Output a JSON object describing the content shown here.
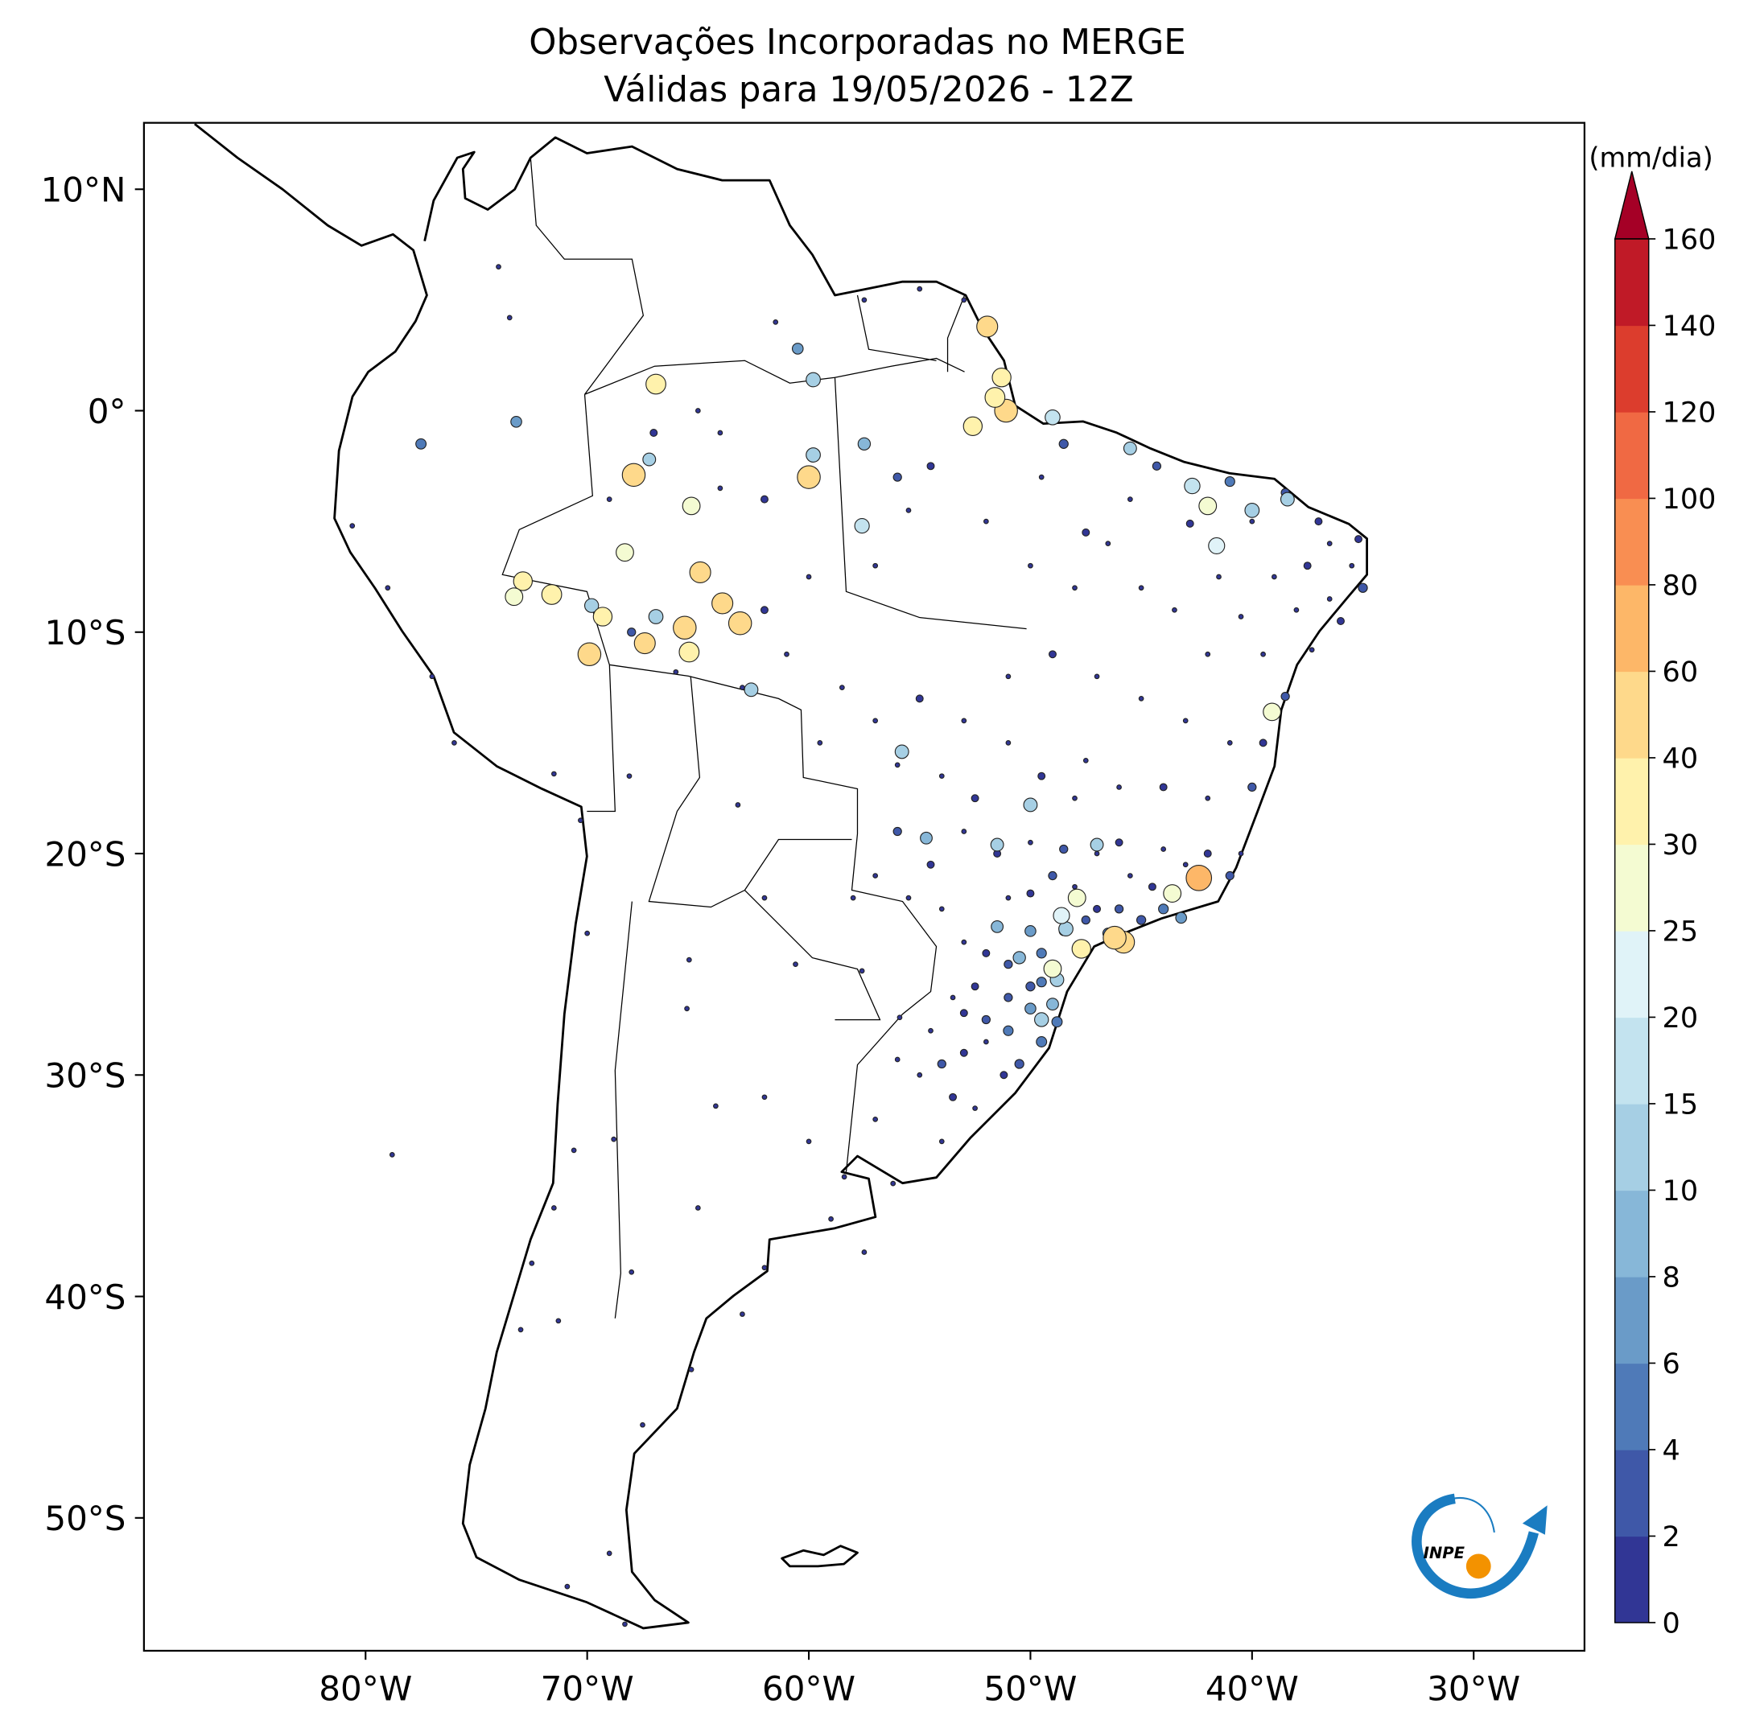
{
  "chart_data": {
    "type": "station_map",
    "title": "Observações Incorporadas no MERGE",
    "subtitle": "Válidas para 19/05/2026 - 12Z",
    "xlim": [
      -90,
      -25
    ],
    "ylim": [
      -56,
      13
    ],
    "xticks": [
      {
        "value": -80,
        "label": "80°W"
      },
      {
        "value": -70,
        "label": "70°W"
      },
      {
        "value": -60,
        "label": "60°W"
      },
      {
        "value": -50,
        "label": "50°W"
      },
      {
        "value": -40,
        "label": "40°W"
      },
      {
        "value": -30,
        "label": "30°W"
      }
    ],
    "yticks": [
      {
        "value": 10,
        "label": "10°N"
      },
      {
        "value": 0,
        "label": "0°"
      },
      {
        "value": -10,
        "label": "10°S"
      },
      {
        "value": -20,
        "label": "20°S"
      },
      {
        "value": -30,
        "label": "30°S"
      },
      {
        "value": -40,
        "label": "40°S"
      },
      {
        "value": -50,
        "label": "50°S"
      }
    ],
    "colorbar": {
      "label": "(mm/dia)",
      "levels": [
        0,
        2,
        4,
        6,
        8,
        10,
        15,
        20,
        25,
        30,
        40,
        60,
        80,
        100,
        120,
        140,
        160
      ],
      "colors": [
        "#313695",
        "#3f58a8",
        "#4f7ab8",
        "#6a9bc8",
        "#87b7d8",
        "#a6cfe4",
        "#c3e3ef",
        "#e0f3f8",
        "#f4fbd2",
        "#fff2ac",
        "#fed98b",
        "#fdb768",
        "#f98e52",
        "#f06943",
        "#dc3d2d",
        "#c01a27"
      ],
      "extend_color": "#a50026"
    },
    "logo": "INPE",
    "stations": [
      {
        "lon": -53,
        "lat": -29,
        "value": 1
      },
      {
        "lon": -52,
        "lat": -28.5,
        "value": 0
      },
      {
        "lon": -54,
        "lat": -29.5,
        "value": 2
      },
      {
        "lon": -55,
        "lat": -30,
        "value": 0
      },
      {
        "lon": -51.2,
        "lat": -30,
        "value": 1
      },
      {
        "lon": -52.5,
        "lat": -31.5,
        "value": 0
      },
      {
        "lon": -53.5,
        "lat": -31,
        "value": 1
      },
      {
        "lon": -56,
        "lat": -29.3,
        "value": 0
      },
      {
        "lon": -50.5,
        "lat": -29.5,
        "value": 3
      },
      {
        "lon": -54.5,
        "lat": -28,
        "value": 0
      },
      {
        "lon": -52,
        "lat": -27.5,
        "value": 2
      },
      {
        "lon": -53,
        "lat": -27.2,
        "value": 1
      },
      {
        "lon": -51,
        "lat": -28,
        "value": 4
      },
      {
        "lon": -49.5,
        "lat": -28.5,
        "value": 5
      },
      {
        "lon": -50,
        "lat": -27,
        "value": 6
      },
      {
        "lon": -49,
        "lat": -26.8,
        "value": 8
      },
      {
        "lon": -48.8,
        "lat": -27.6,
        "value": 5
      },
      {
        "lon": -51,
        "lat": -26.5,
        "value": 2
      },
      {
        "lon": -52.5,
        "lat": -26,
        "value": 1
      },
      {
        "lon": -53.5,
        "lat": -26.5,
        "value": 0
      },
      {
        "lon": -50,
        "lat": -26,
        "value": 3
      },
      {
        "lon": -49.5,
        "lat": -25.8,
        "value": 4
      },
      {
        "lon": -51,
        "lat": -25,
        "value": 2
      },
      {
        "lon": -52,
        "lat": -24.5,
        "value": 1
      },
      {
        "lon": -53,
        "lat": -24,
        "value": 0
      },
      {
        "lon": -51.5,
        "lat": -23.3,
        "value": 8
      },
      {
        "lon": -50,
        "lat": -23.5,
        "value": 6
      },
      {
        "lon": -49.5,
        "lat": -24.5,
        "value": 4
      },
      {
        "lon": -48.5,
        "lat": -23.5,
        "value": 3
      },
      {
        "lon": -47.5,
        "lat": -23,
        "value": 2
      },
      {
        "lon": -46.5,
        "lat": -23.6,
        "value": 5
      },
      {
        "lon": -47,
        "lat": -22.5,
        "value": 1
      },
      {
        "lon": -48,
        "lat": -21.5,
        "value": 0
      },
      {
        "lon": -49,
        "lat": -21,
        "value": 2
      },
      {
        "lon": -50,
        "lat": -21.8,
        "value": 1
      },
      {
        "lon": -51,
        "lat": -22,
        "value": 0
      },
      {
        "lon": -46,
        "lat": -22.5,
        "value": 2
      },
      {
        "lon": -45,
        "lat": -23,
        "value": 3
      },
      {
        "lon": -44,
        "lat": -22.5,
        "value": 4
      },
      {
        "lon": -43.2,
        "lat": -22.9,
        "value": 6
      },
      {
        "lon": -44.5,
        "lat": -21.5,
        "value": 1
      },
      {
        "lon": -45.5,
        "lat": -21,
        "value": 0
      },
      {
        "lon": -43,
        "lat": -20.5,
        "value": 0
      },
      {
        "lon": -42,
        "lat": -20,
        "value": 1
      },
      {
        "lon": -41,
        "lat": -21,
        "value": 2
      },
      {
        "lon": -40.5,
        "lat": -20,
        "value": 0
      },
      {
        "lon": -44,
        "lat": -19.8,
        "value": 0
      },
      {
        "lon": -46,
        "lat": -19.5,
        "value": 1
      },
      {
        "lon": -47,
        "lat": -20,
        "value": 0
      },
      {
        "lon": -48.5,
        "lat": -19.8,
        "value": 2
      },
      {
        "lon": -50,
        "lat": -19.5,
        "value": 0
      },
      {
        "lon": -51.5,
        "lat": -20,
        "value": 1
      },
      {
        "lon": -53,
        "lat": -19,
        "value": 0
      },
      {
        "lon": -54.5,
        "lat": -20.5,
        "value": 1
      },
      {
        "lon": -55.5,
        "lat": -22,
        "value": 0
      },
      {
        "lon": -56,
        "lat": -19,
        "value": 2
      },
      {
        "lon": -57,
        "lat": -21,
        "value": 0
      },
      {
        "lon": -54,
        "lat": -22.5,
        "value": 0
      },
      {
        "lon": -48,
        "lat": -17.5,
        "value": 0
      },
      {
        "lon": -49.5,
        "lat": -16.5,
        "value": 1
      },
      {
        "lon": -47.5,
        "lat": -15.8,
        "value": 0
      },
      {
        "lon": -46,
        "lat": -17,
        "value": 0
      },
      {
        "lon": -44,
        "lat": -17,
        "value": 1
      },
      {
        "lon": -42,
        "lat": -17.5,
        "value": 0
      },
      {
        "lon": -40,
        "lat": -17,
        "value": 2
      },
      {
        "lon": -39.5,
        "lat": -15,
        "value": 1
      },
      {
        "lon": -41,
        "lat": -15,
        "value": 0
      },
      {
        "lon": -43,
        "lat": -14,
        "value": 0
      },
      {
        "lon": -45,
        "lat": -13,
        "value": 0
      },
      {
        "lon": -47,
        "lat": -12,
        "value": 0
      },
      {
        "lon": -49,
        "lat": -11,
        "value": 1
      },
      {
        "lon": -51,
        "lat": -12,
        "value": 0
      },
      {
        "lon": -53,
        "lat": -14,
        "value": 0
      },
      {
        "lon": -55,
        "lat": -13,
        "value": 1
      },
      {
        "lon": -57,
        "lat": -14,
        "value": 0
      },
      {
        "lon": -58.5,
        "lat": -12.5,
        "value": 0
      },
      {
        "lon": -59.5,
        "lat": -15,
        "value": 0
      },
      {
        "lon": -56,
        "lat": -16,
        "value": 0
      },
      {
        "lon": -54,
        "lat": -16.5,
        "value": 0
      },
      {
        "lon": -52.5,
        "lat": -17.5,
        "value": 1
      },
      {
        "lon": -51,
        "lat": -15,
        "value": 0
      },
      {
        "lon": -38.5,
        "lat": -3.7,
        "value": 2
      },
      {
        "lon": -37,
        "lat": -5,
        "value": 1
      },
      {
        "lon": -35.5,
        "lat": -7,
        "value": 0
      },
      {
        "lon": -35,
        "lat": -8,
        "value": 3
      },
      {
        "lon": -36,
        "lat": -9.5,
        "value": 1
      },
      {
        "lon": -37.3,
        "lat": -10.8,
        "value": 0
      },
      {
        "lon": -38.5,
        "lat": -12.9,
        "value": 2
      },
      {
        "lon": -39.5,
        "lat": -11,
        "value": 0
      },
      {
        "lon": -40.5,
        "lat": -9.3,
        "value": 0
      },
      {
        "lon": -41.5,
        "lat": -7.5,
        "value": 0
      },
      {
        "lon": -42.8,
        "lat": -5.1,
        "value": 1
      },
      {
        "lon": -44.3,
        "lat": -2.5,
        "value": 2
      },
      {
        "lon": -45.5,
        "lat": -4,
        "value": 0
      },
      {
        "lon": -46.5,
        "lat": -6,
        "value": 0
      },
      {
        "lon": -43.5,
        "lat": -9,
        "value": 0
      },
      {
        "lon": -42,
        "lat": -11,
        "value": 0
      },
      {
        "lon": -45,
        "lat": -8,
        "value": 0
      },
      {
        "lon": -47.5,
        "lat": -5.5,
        "value": 1
      },
      {
        "lon": -48.5,
        "lat": -1.5,
        "value": 3
      },
      {
        "lon": -49.5,
        "lat": -3,
        "value": 0
      },
      {
        "lon": -48,
        "lat": -8,
        "value": 0
      },
      {
        "lon": -37.5,
        "lat": -7,
        "value": 1
      },
      {
        "lon": -36.5,
        "lat": -6,
        "value": 0
      },
      {
        "lon": -40,
        "lat": -5,
        "value": 0
      },
      {
        "lon": -39,
        "lat": -7.5,
        "value": 0
      },
      {
        "lon": -41,
        "lat": -3.2,
        "value": 4
      },
      {
        "lon": -35.2,
        "lat": -5.8,
        "value": 1
      },
      {
        "lon": -36.5,
        "lat": -8.5,
        "value": 0
      },
      {
        "lon": -38,
        "lat": -9,
        "value": 0
      },
      {
        "lon": -60,
        "lat": -3,
        "value": 0
      },
      {
        "lon": -62,
        "lat": -4,
        "value": 1
      },
      {
        "lon": -64,
        "lat": -3.5,
        "value": 0
      },
      {
        "lon": -56,
        "lat": -3,
        "value": 2
      },
      {
        "lon": -54.5,
        "lat": -2.5,
        "value": 1
      },
      {
        "lon": -55.5,
        "lat": -4.5,
        "value": 0
      },
      {
        "lon": -52,
        "lat": -5,
        "value": 0
      },
      {
        "lon": -50,
        "lat": -7,
        "value": 0
      },
      {
        "lon": -57,
        "lat": -7,
        "value": 0
      },
      {
        "lon": -60,
        "lat": -7.5,
        "value": 0
      },
      {
        "lon": -62,
        "lat": -9,
        "value": 1
      },
      {
        "lon": -61,
        "lat": -11,
        "value": 0
      },
      {
        "lon": -63,
        "lat": -12.5,
        "value": 0
      },
      {
        "lon": -66,
        "lat": -11.8,
        "value": 0
      },
      {
        "lon": -68,
        "lat": -10,
        "value": 2
      },
      {
        "lon": -65,
        "lat": 0,
        "value": 0
      },
      {
        "lon": -64,
        "lat": -1,
        "value": 0
      },
      {
        "lon": -67,
        "lat": -1,
        "value": 1
      },
      {
        "lon": -69,
        "lat": -4,
        "value": 0
      },
      {
        "lon": -60.5,
        "lat": 2.8,
        "value": 6
      },
      {
        "lon": -61.5,
        "lat": 4,
        "value": 0
      },
      {
        "lon": -57.5,
        "lat": 5,
        "value": 0
      },
      {
        "lon": -55,
        "lat": 5.5,
        "value": 0
      },
      {
        "lon": -53,
        "lat": 5,
        "value": 0
      },
      {
        "lon": -74,
        "lat": 6.5,
        "value": 0
      },
      {
        "lon": -73.5,
        "lat": 4.2,
        "value": 0
      },
      {
        "lon": -77.5,
        "lat": -1.5,
        "value": 5
      },
      {
        "lon": -58.4,
        "lat": -34.6,
        "value": 0
      },
      {
        "lon": -60,
        "lat": -33,
        "value": 0
      },
      {
        "lon": -62,
        "lat": -31,
        "value": 0
      },
      {
        "lon": -64.2,
        "lat": -31.4,
        "value": 0
      },
      {
        "lon": -65.5,
        "lat": -27,
        "value": 0
      },
      {
        "lon": -68.8,
        "lat": -32.9,
        "value": 0
      },
      {
        "lon": -70.6,
        "lat": -33.4,
        "value": 0
      },
      {
        "lon": -71.5,
        "lat": -36,
        "value": 0
      },
      {
        "lon": -72.5,
        "lat": -38.5,
        "value": 0
      },
      {
        "lon": -73,
        "lat": -41.5,
        "value": 0
      },
      {
        "lon": -71.3,
        "lat": -41.1,
        "value": 0
      },
      {
        "lon": -68,
        "lat": -38.9,
        "value": 0
      },
      {
        "lon": -65,
        "lat": -36,
        "value": 0
      },
      {
        "lon": -62,
        "lat": -38.7,
        "value": 0
      },
      {
        "lon": -57.5,
        "lat": -38,
        "value": 0
      },
      {
        "lon": -59,
        "lat": -36.5,
        "value": 0
      },
      {
        "lon": -67.5,
        "lat": -45.8,
        "value": 0
      },
      {
        "lon": -69,
        "lat": -51.6,
        "value": 0
      },
      {
        "lon": -70.9,
        "lat": -53.1,
        "value": 0
      },
      {
        "lon": -68.3,
        "lat": -54.8,
        "value": 0
      },
      {
        "lon": -65.3,
        "lat": -43.3,
        "value": 0
      },
      {
        "lon": -63,
        "lat": -40.8,
        "value": 0
      },
      {
        "lon": -70,
        "lat": -23.6,
        "value": 0
      },
      {
        "lon": -70.3,
        "lat": -18.5,
        "value": 0
      },
      {
        "lon": -65.4,
        "lat": -24.8,
        "value": 0
      },
      {
        "lon": -63.2,
        "lat": -17.8,
        "value": 0
      },
      {
        "lon": -68.1,
        "lat": -16.5,
        "value": 0
      },
      {
        "lon": -71.5,
        "lat": -16.4,
        "value": 0
      },
      {
        "lon": -77,
        "lat": -12,
        "value": 0
      },
      {
        "lon": -76,
        "lat": -15,
        "value": 0
      },
      {
        "lon": -80.6,
        "lat": -5.2,
        "value": 0
      },
      {
        "lon": -79,
        "lat": -8,
        "value": 0
      },
      {
        "lon": -60.6,
        "lat": -25,
        "value": 0
      },
      {
        "lon": -57.6,
        "lat": -25.3,
        "value": 0
      },
      {
        "lon": -55.9,
        "lat": -27.4,
        "value": 0
      },
      {
        "lon": -58,
        "lat": -22,
        "value": 0
      },
      {
        "lon": -62,
        "lat": -22,
        "value": 0
      },
      {
        "lon": -56.2,
        "lat": -34.9,
        "value": 0
      },
      {
        "lon": -54,
        "lat": -33,
        "value": 0
      },
      {
        "lon": -57,
        "lat": -32,
        "value": 0
      },
      {
        "lon": -78.8,
        "lat": -33.6,
        "value": 0
      },
      {
        "lon": -55.8,
        "lat": -15.4,
        "value": 12
      },
      {
        "lon": -50,
        "lat": -17.8,
        "value": 12
      },
      {
        "lon": -47,
        "lat": -19.6,
        "value": 10
      },
      {
        "lon": -48.4,
        "lat": -23.4,
        "value": 14
      },
      {
        "lon": -48.8,
        "lat": -25.7,
        "value": 12
      },
      {
        "lon": -50.5,
        "lat": -24.7,
        "value": 9
      },
      {
        "lon": -49.5,
        "lat": -27.5,
        "value": 13
      },
      {
        "lon": -51.5,
        "lat": -19.6,
        "value": 10
      },
      {
        "lon": -54.7,
        "lat": -19.3,
        "value": 8
      },
      {
        "lon": -57.5,
        "lat": -1.5,
        "value": 9
      },
      {
        "lon": -59.8,
        "lat": -2,
        "value": 14
      },
      {
        "lon": -57.6,
        "lat": -5.2,
        "value": 15
      },
      {
        "lon": -59.8,
        "lat": 1.4,
        "value": 14
      },
      {
        "lon": -67.2,
        "lat": -2.2,
        "value": 10
      },
      {
        "lon": -73.2,
        "lat": -0.5,
        "value": 6
      },
      {
        "lon": -69.8,
        "lat": -8.8,
        "value": 13
      },
      {
        "lon": -66.9,
        "lat": -9.3,
        "value": 14
      },
      {
        "lon": -62.6,
        "lat": -12.6,
        "value": 12
      },
      {
        "lon": -49,
        "lat": -0.3,
        "value": 16
      },
      {
        "lon": -45.5,
        "lat": -1.7,
        "value": 10
      },
      {
        "lon": -38.4,
        "lat": -4,
        "value": 12
      },
      {
        "lon": -40,
        "lat": -4.5,
        "value": 14
      },
      {
        "lon": -51.95,
        "lat": 3.8,
        "value": 40
      },
      {
        "lon": -51.1,
        "lat": 0,
        "value": 50
      },
      {
        "lon": -51.6,
        "lat": 0.6,
        "value": 35
      },
      {
        "lon": -51.3,
        "lat": 1.5,
        "value": 30
      },
      {
        "lon": -52.6,
        "lat": -0.7,
        "value": 30
      },
      {
        "lon": -60,
        "lat": -3,
        "value": 50
      },
      {
        "lon": -67.9,
        "lat": -2.9,
        "value": 50
      },
      {
        "lon": -66.9,
        "lat": 1.2,
        "value": 35
      },
      {
        "lon": -65.3,
        "lat": -4.3,
        "value": 25
      },
      {
        "lon": -68.3,
        "lat": -6.4,
        "value": 25
      },
      {
        "lon": -64.9,
        "lat": -7.3,
        "value": 40
      },
      {
        "lon": -63.9,
        "lat": -8.7,
        "value": 40
      },
      {
        "lon": -63.1,
        "lat": -9.6,
        "value": 50
      },
      {
        "lon": -65.6,
        "lat": -9.8,
        "value": 50
      },
      {
        "lon": -65.4,
        "lat": -10.9,
        "value": 35
      },
      {
        "lon": -67.4,
        "lat": -10.5,
        "value": 40
      },
      {
        "lon": -69.9,
        "lat": -11,
        "value": 50
      },
      {
        "lon": -72.9,
        "lat": -7.7,
        "value": 30
      },
      {
        "lon": -73.3,
        "lat": -8.4,
        "value": 25
      },
      {
        "lon": -71.6,
        "lat": -8.3,
        "value": 35
      },
      {
        "lon": -69.3,
        "lat": -9.3,
        "value": 30
      },
      {
        "lon": -42,
        "lat": -4.3,
        "value": 25
      },
      {
        "lon": -41.6,
        "lat": -6.1,
        "value": 20
      },
      {
        "lon": -42.7,
        "lat": -3.4,
        "value": 18
      },
      {
        "lon": -39.1,
        "lat": -13.6,
        "value": 25
      },
      {
        "lon": -43.6,
        "lat": -21.8,
        "value": 25
      },
      {
        "lon": -42.4,
        "lat": -21.1,
        "value": 65
      },
      {
        "lon": -45.8,
        "lat": -24,
        "value": 45
      },
      {
        "lon": -46.2,
        "lat": -23.8,
        "value": 50
      },
      {
        "lon": -47.7,
        "lat": -24.3,
        "value": 30
      },
      {
        "lon": -47.9,
        "lat": -22,
        "value": 25
      },
      {
        "lon": -48.6,
        "lat": -22.8,
        "value": 20
      },
      {
        "lon": -49,
        "lat": -25.2,
        "value": 25
      }
    ]
  }
}
